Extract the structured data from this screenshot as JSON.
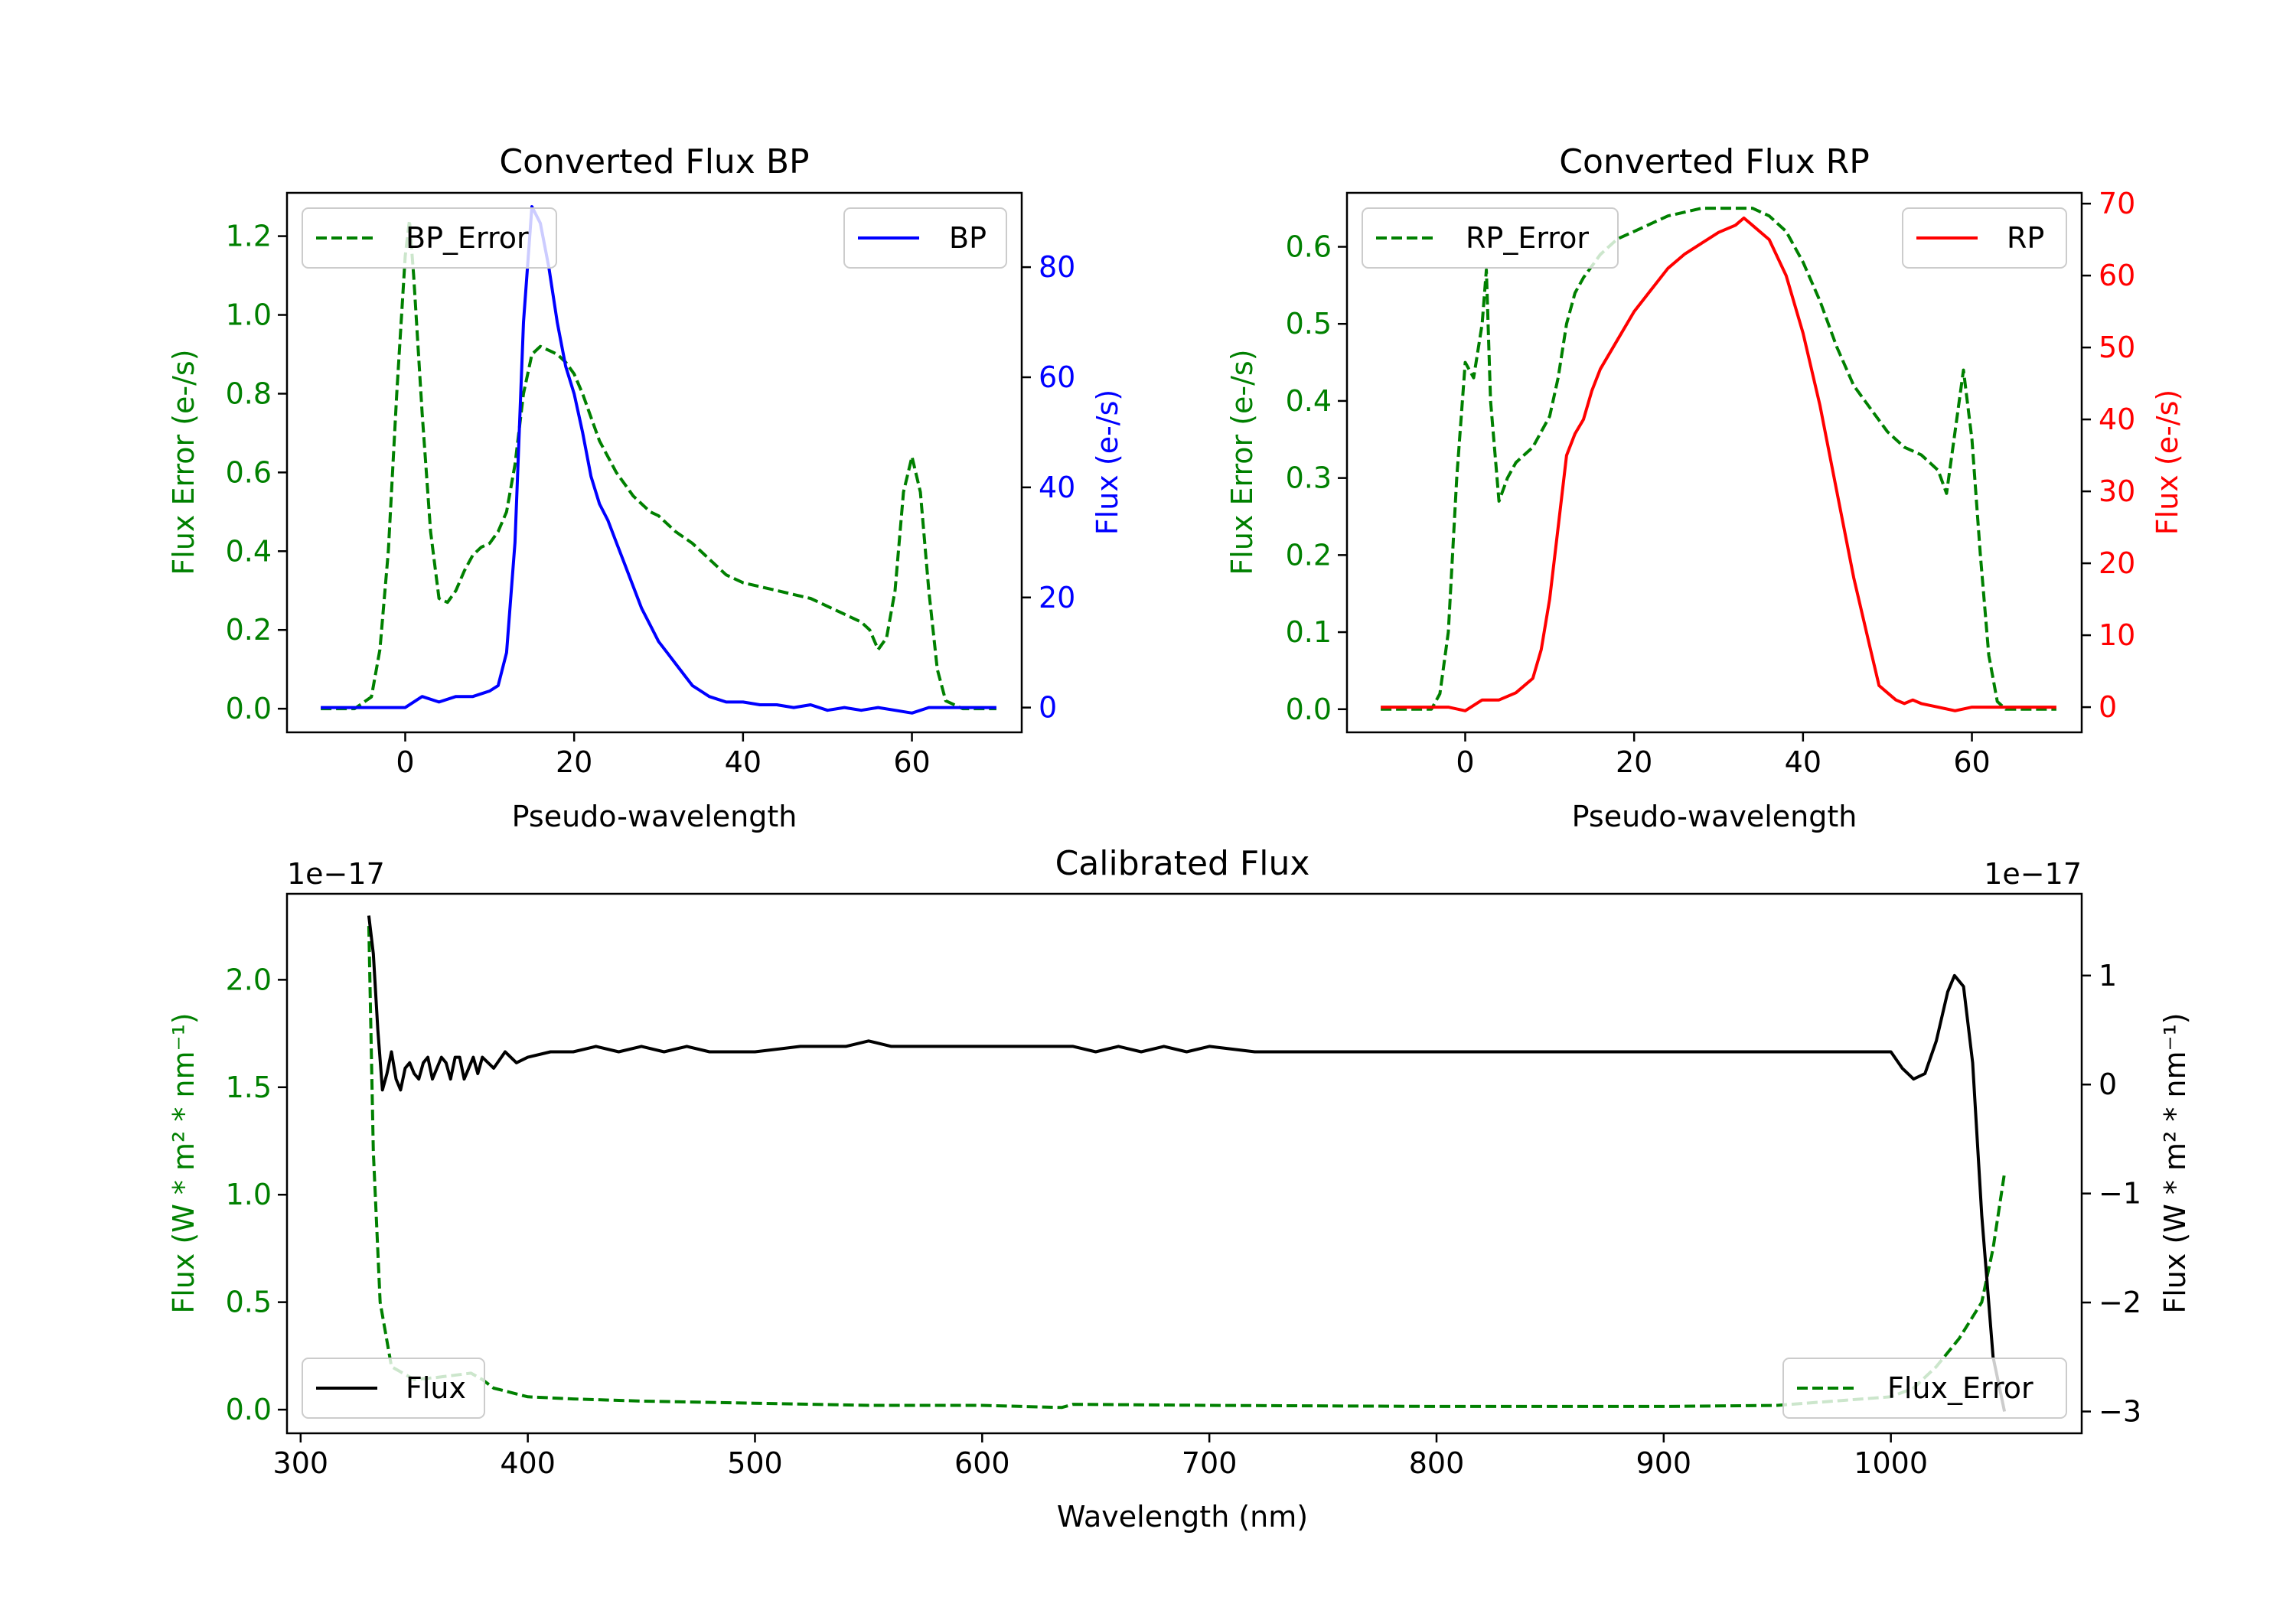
{
  "chart_data": [
    {
      "id": "bp",
      "type": "line",
      "title": "Converted Flux BP",
      "xlabel": "Pseudo-wavelength",
      "xlim": [
        -14,
        73
      ],
      "xticks": [
        0,
        20,
        40,
        60
      ],
      "left_axis": {
        "label": "Flux Error (e-/s)",
        "color": "#008000",
        "ylim": [
          -0.06,
          1.31
        ],
        "ticks": [
          0.0,
          0.2,
          0.4,
          0.6,
          0.8,
          1.0,
          1.2
        ],
        "tick_labels": [
          "0.0",
          "0.2",
          "0.4",
          "0.6",
          "0.8",
          "1.0",
          "1.2"
        ]
      },
      "right_axis": {
        "label": "Flux (e-/s)",
        "color": "#0000ff",
        "ylim": [
          -4.5,
          93.5
        ],
        "ticks": [
          0,
          20,
          40,
          60,
          80
        ],
        "tick_labels": [
          "0",
          "20",
          "40",
          "60",
          "80"
        ]
      },
      "series": [
        {
          "name": "BP_Error",
          "axis": "left",
          "style": "dashed",
          "color": "#008000",
          "x": [
            -10,
            -6,
            -4,
            -3,
            -2,
            -1,
            0,
            0.5,
            1,
            2,
            3,
            4,
            5,
            6,
            7,
            8,
            9,
            10,
            11,
            12,
            13,
            14,
            15,
            16,
            17,
            18,
            19,
            20,
            21,
            22,
            23,
            24,
            25,
            26,
            27,
            28,
            29,
            30,
            32,
            34,
            36,
            38,
            40,
            42,
            44,
            46,
            48,
            50,
            52,
            54,
            55,
            56,
            57,
            58,
            59,
            60,
            61,
            62,
            63,
            64,
            66,
            70
          ],
          "y": [
            0.0,
            0.0,
            0.03,
            0.15,
            0.4,
            0.8,
            1.15,
            1.24,
            1.1,
            0.75,
            0.45,
            0.28,
            0.27,
            0.3,
            0.35,
            0.39,
            0.41,
            0.42,
            0.45,
            0.5,
            0.62,
            0.8,
            0.9,
            0.92,
            0.91,
            0.9,
            0.88,
            0.85,
            0.8,
            0.74,
            0.68,
            0.64,
            0.6,
            0.57,
            0.54,
            0.52,
            0.5,
            0.49,
            0.45,
            0.42,
            0.38,
            0.34,
            0.32,
            0.31,
            0.3,
            0.29,
            0.28,
            0.26,
            0.24,
            0.22,
            0.2,
            0.15,
            0.18,
            0.3,
            0.55,
            0.64,
            0.55,
            0.3,
            0.1,
            0.02,
            0.0,
            0.0
          ]
        },
        {
          "name": "BP",
          "axis": "right",
          "style": "solid",
          "color": "#0000ff",
          "x": [
            -10,
            -4,
            -2,
            0,
            2,
            4,
            6,
            8,
            10,
            11,
            12,
            13,
            14,
            15,
            16,
            17,
            18,
            19,
            20,
            21,
            22,
            23,
            24,
            25,
            26,
            27,
            28,
            29,
            30,
            31,
            32,
            33,
            34,
            35,
            36,
            37,
            38,
            40,
            42,
            44,
            46,
            48,
            50,
            52,
            54,
            56,
            58,
            60,
            62,
            66,
            70
          ],
          "y": [
            0,
            0,
            0,
            0,
            2,
            1,
            2,
            2,
            3,
            4,
            10,
            30,
            70,
            91,
            88,
            80,
            70,
            62,
            57,
            50,
            42,
            37,
            34,
            30,
            26,
            22,
            18,
            15,
            12,
            10,
            8,
            6,
            4,
            3,
            2,
            1.5,
            1,
            1,
            0.5,
            0.5,
            0,
            0.5,
            -0.5,
            0,
            -0.5,
            0,
            -0.5,
            -1,
            0,
            0,
            0
          ]
        }
      ],
      "legends": [
        {
          "series": "BP_Error",
          "label": "BP_Error",
          "placement": "upper left"
        },
        {
          "series": "BP",
          "label": "BP",
          "placement": "upper right"
        }
      ]
    },
    {
      "id": "rp",
      "type": "line",
      "title": "Converted Flux RP",
      "xlabel": "Pseudo-wavelength",
      "xlim": [
        -14,
        73
      ],
      "xticks": [
        0,
        20,
        40,
        60
      ],
      "left_axis": {
        "label": "Flux Error (e-/s)",
        "color": "#008000",
        "ylim": [
          -0.03,
          0.67
        ],
        "ticks": [
          0.0,
          0.1,
          0.2,
          0.3,
          0.4,
          0.5,
          0.6
        ],
        "tick_labels": [
          "0.0",
          "0.1",
          "0.2",
          "0.3",
          "0.4",
          "0.5",
          "0.6"
        ]
      },
      "right_axis": {
        "label": "Flux (e-/s)",
        "color": "#ff0000",
        "ylim": [
          -3.5,
          71.5
        ],
        "ticks": [
          0,
          10,
          20,
          30,
          40,
          50,
          60,
          70
        ],
        "tick_labels": [
          "0",
          "10",
          "20",
          "30",
          "40",
          "50",
          "60",
          "70"
        ]
      },
      "series": [
        {
          "name": "RP_Error",
          "axis": "right_none",
          "axis_ref": "left",
          "style": "dashed",
          "color": "#008000",
          "x": [
            -10,
            -5,
            -4,
            -3,
            -2,
            -1,
            0,
            1,
            2,
            2.5,
            3,
            4,
            5,
            6,
            7,
            8,
            9,
            10,
            11,
            12,
            13,
            14,
            16,
            18,
            20,
            22,
            24,
            26,
            28,
            30,
            32,
            34,
            36,
            38,
            40,
            42,
            44,
            46,
            48,
            50,
            52,
            54,
            55,
            56,
            57,
            58,
            59,
            60,
            61,
            62,
            63,
            64,
            66,
            70
          ],
          "y": [
            0.0,
            0.0,
            0.0,
            0.02,
            0.1,
            0.3,
            0.45,
            0.43,
            0.5,
            0.57,
            0.4,
            0.27,
            0.3,
            0.32,
            0.33,
            0.34,
            0.36,
            0.38,
            0.43,
            0.5,
            0.54,
            0.56,
            0.59,
            0.61,
            0.62,
            0.63,
            0.64,
            0.645,
            0.65,
            0.65,
            0.65,
            0.65,
            0.64,
            0.62,
            0.58,
            0.53,
            0.47,
            0.42,
            0.39,
            0.36,
            0.34,
            0.33,
            0.32,
            0.31,
            0.28,
            0.36,
            0.44,
            0.35,
            0.2,
            0.07,
            0.01,
            0.0,
            0.0,
            0.0
          ]
        },
        {
          "name": "RP",
          "axis": "right",
          "style": "solid",
          "color": "#ff0000",
          "x": [
            -10,
            -4,
            -2,
            0,
            2,
            4,
            6,
            8,
            9,
            10,
            11,
            12,
            13,
            14,
            15,
            16,
            18,
            20,
            22,
            24,
            26,
            28,
            30,
            32,
            33,
            34,
            36,
            38,
            40,
            42,
            44,
            46,
            48,
            49,
            50,
            51,
            52,
            53,
            54,
            56,
            58,
            60,
            62,
            66,
            70
          ],
          "y": [
            0,
            0,
            0,
            -0.5,
            1,
            1,
            2,
            4,
            8,
            15,
            25,
            35,
            38,
            40,
            44,
            47,
            51,
            55,
            58,
            61,
            63,
            64.5,
            66,
            67,
            68,
            67,
            65,
            60,
            52,
            42,
            30,
            18,
            8,
            3,
            2,
            1,
            0.5,
            1,
            0.5,
            0,
            -0.5,
            0,
            0,
            0,
            0
          ]
        }
      ],
      "legends": [
        {
          "series": "RP_Error",
          "label": "RP_Error",
          "placement": "upper left"
        },
        {
          "series": "RP",
          "label": "RP",
          "placement": "upper right"
        }
      ]
    },
    {
      "id": "cal",
      "type": "line",
      "title": "Calibrated Flux",
      "xlabel": "Wavelength (nm)",
      "xlim": [
        294,
        1084
      ],
      "xticks": [
        300,
        400,
        500,
        600,
        700,
        800,
        900,
        1000
      ],
      "left_axis": {
        "label": "Flux (W * m² * nm⁻¹)",
        "color": "#008000",
        "offset_text": "1e−17",
        "ylim": [
          -0.11,
          2.4
        ],
        "ticks": [
          0.0,
          0.5,
          1.0,
          1.5,
          2.0
        ],
        "tick_labels": [
          "0.0",
          "0.5",
          "1.0",
          "1.5",
          "2.0"
        ]
      },
      "right_axis": {
        "label": "Flux (W * m² * nm⁻¹)",
        "color": "#000000",
        "offset_text": "1e−17",
        "ylim": [
          -3.2,
          1.75
        ],
        "ticks": [
          -3,
          -2,
          -1,
          0,
          1
        ],
        "tick_labels": [
          "−3",
          "−2",
          "−1",
          "0",
          "1"
        ]
      },
      "series": [
        {
          "name": "Flux_Error",
          "axis": "left",
          "style": "dashed",
          "color": "#008000",
          "x": [
            330,
            332,
            335,
            340,
            350,
            360,
            375,
            380,
            385,
            400,
            420,
            450,
            500,
            550,
            600,
            635,
            640,
            700,
            800,
            900,
            950,
            1000,
            1010,
            1020,
            1030,
            1040,
            1045,
            1050
          ],
          "y": [
            2.25,
            1.2,
            0.5,
            0.2,
            0.14,
            0.15,
            0.17,
            0.14,
            0.1,
            0.06,
            0.05,
            0.04,
            0.03,
            0.02,
            0.02,
            0.01,
            0.025,
            0.02,
            0.015,
            0.015,
            0.02,
            0.06,
            0.1,
            0.2,
            0.33,
            0.5,
            0.75,
            1.1
          ]
        },
        {
          "name": "Flux",
          "axis": "right",
          "style": "solid",
          "color": "#000000",
          "x": [
            330,
            332,
            334,
            336,
            338,
            340,
            342,
            344,
            346,
            348,
            350,
            352,
            354,
            356,
            358,
            360,
            362,
            364,
            366,
            368,
            370,
            372,
            374,
            376,
            378,
            380,
            385,
            390,
            395,
            400,
            410,
            420,
            430,
            440,
            450,
            460,
            470,
            480,
            490,
            500,
            520,
            540,
            550,
            560,
            580,
            600,
            620,
            640,
            650,
            660,
            670,
            680,
            690,
            700,
            720,
            740,
            760,
            780,
            800,
            820,
            840,
            860,
            880,
            900,
            920,
            940,
            960,
            980,
            990,
            1000,
            1005,
            1010,
            1015,
            1020,
            1025,
            1028,
            1032,
            1036,
            1040,
            1045,
            1050
          ],
          "y": [
            1.55,
            1.2,
            0.5,
            -0.05,
            0.1,
            0.3,
            0.05,
            -0.05,
            0.15,
            0.2,
            0.1,
            0.05,
            0.2,
            0.25,
            0.05,
            0.15,
            0.25,
            0.2,
            0.05,
            0.25,
            0.25,
            0.05,
            0.15,
            0.25,
            0.1,
            0.25,
            0.15,
            0.3,
            0.2,
            0.25,
            0.3,
            0.3,
            0.35,
            0.3,
            0.35,
            0.3,
            0.35,
            0.3,
            0.3,
            0.3,
            0.35,
            0.35,
            0.4,
            0.35,
            0.35,
            0.35,
            0.35,
            0.35,
            0.3,
            0.35,
            0.3,
            0.35,
            0.3,
            0.35,
            0.3,
            0.3,
            0.3,
            0.3,
            0.3,
            0.3,
            0.3,
            0.3,
            0.3,
            0.3,
            0.3,
            0.3,
            0.3,
            0.3,
            0.3,
            0.3,
            0.15,
            0.05,
            0.1,
            0.4,
            0.85,
            1.0,
            0.9,
            0.2,
            -1.2,
            -2.5,
            -3.0
          ]
        }
      ],
      "legends": [
        {
          "series": "Flux",
          "label": "Flux",
          "placement": "lower left"
        },
        {
          "series": "Flux_Error",
          "label": "Flux_Error",
          "placement": "lower right"
        }
      ]
    }
  ]
}
